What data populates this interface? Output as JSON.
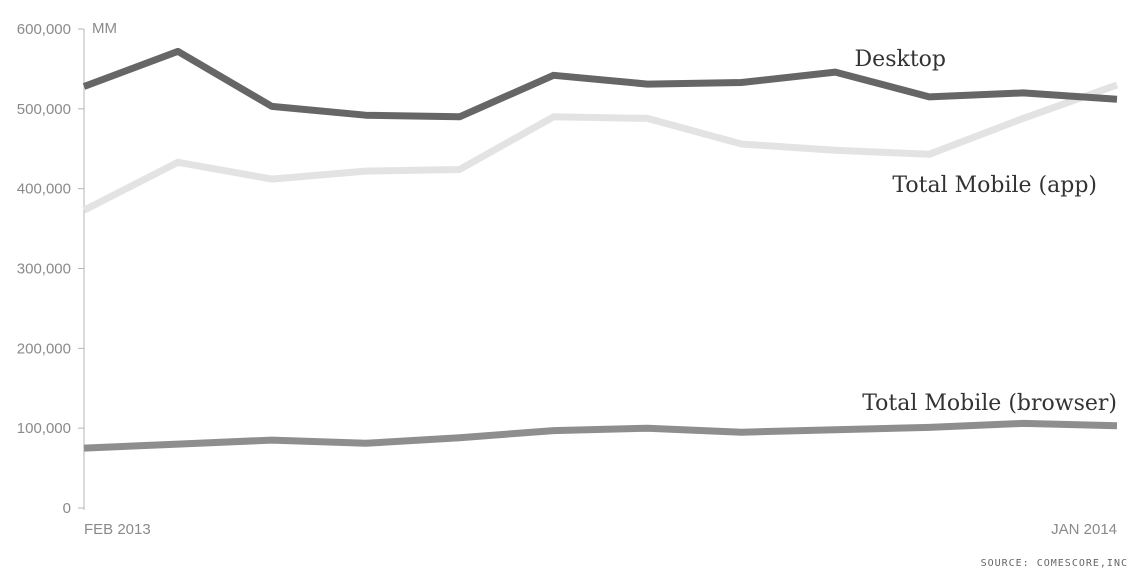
{
  "chart_data": {
    "type": "line",
    "title": "",
    "y_unit_label": "MM",
    "ylim": [
      0,
      600000
    ],
    "yticks": [
      0,
      100000,
      200000,
      300000,
      400000,
      500000,
      600000
    ],
    "ytick_labels": [
      "0",
      "100,000",
      "200,000",
      "300,000",
      "400,000",
      "500,000",
      "600,000"
    ],
    "x_labels": [
      "FEB 2013",
      "JAN 2014"
    ],
    "x_label_indices": [
      0,
      11
    ],
    "num_points": 12,
    "grid": false,
    "series": [
      {
        "name": "Desktop",
        "color": "#666666",
        "values": [
          528000,
          572000,
          503000,
          492000,
          490000,
          542000,
          531000,
          533000,
          546000,
          515000,
          520000,
          512000
        ]
      },
      {
        "name": "Total Mobile (app)",
        "color": "#e3e3e3",
        "values": [
          373000,
          433000,
          412000,
          422000,
          424000,
          490000,
          488000,
          456000,
          448000,
          443000,
          488000,
          530000
        ]
      },
      {
        "name": "Total Mobile (browser)",
        "color": "#8e8e8e",
        "values": [
          75000,
          80000,
          85000,
          81000,
          88000,
          97000,
          100000,
          95000,
          98000,
          101000,
          106000,
          103000
        ]
      }
    ],
    "source": "SOURCE: COMESCORE,INC"
  }
}
